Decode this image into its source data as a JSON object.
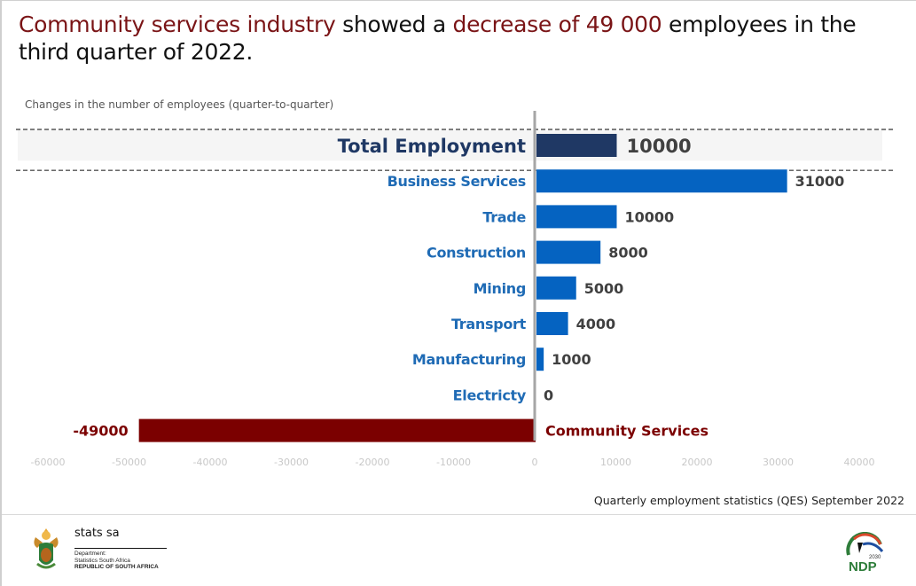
{
  "title": {
    "part1": "Community services industry",
    "part2": " showed a ",
    "part3": "decrease of 49 000",
    "part4": " employees in the third quarter of 2022."
  },
  "colors": {
    "highlight": "#7a1416",
    "total_bar": "#1f3864",
    "positive_bar": "#0563c1",
    "negative_bar": "#7b0000",
    "category_label": "#1f6bb5",
    "total_label": "#1f3864",
    "value_label": "#404040",
    "axis_tick": "#c8c8c8"
  },
  "chart_data": {
    "type": "bar",
    "orientation": "horizontal",
    "subtitle": "Changes in the number of employees (quarter-to-quarter)",
    "categories": [
      "Total Employment",
      "Business Services",
      "Trade",
      "Construction",
      "Mining",
      "Transport",
      "Manufacturing",
      "Electricty",
      "Community Services"
    ],
    "values": [
      10000,
      31000,
      10000,
      8000,
      5000,
      4000,
      1000,
      0,
      -49000
    ],
    "value_labels": [
      "10000",
      "31000",
      "10000",
      "8000",
      "5000",
      "4000",
      "1000",
      "0",
      "-49000"
    ],
    "highlighted_category": "Total Employment",
    "xlim": [
      -60000,
      40000
    ],
    "xticks": [
      -60000,
      -50000,
      -40000,
      -30000,
      -20000,
      -10000,
      0,
      10000,
      20000,
      30000,
      40000
    ],
    "xtick_labels": [
      "-60000",
      "-50000",
      "-40000",
      "-30000",
      "-20000",
      "-10000",
      "0",
      "10000",
      "20000",
      "30000",
      "40000"
    ],
    "xlabel": "",
    "ylabel": "",
    "grid": false,
    "legend": "none"
  },
  "source": "Quarterly employment statistics (QES) September 2022",
  "footer": {
    "logo_name": "stats sa",
    "dept_line1": "Department:",
    "dept_line2": "Statistics South Africa",
    "dept_line3": "REPUBLIC OF SOUTH AFRICA",
    "ndp_year": "2030",
    "ndp_text": "NDP"
  }
}
